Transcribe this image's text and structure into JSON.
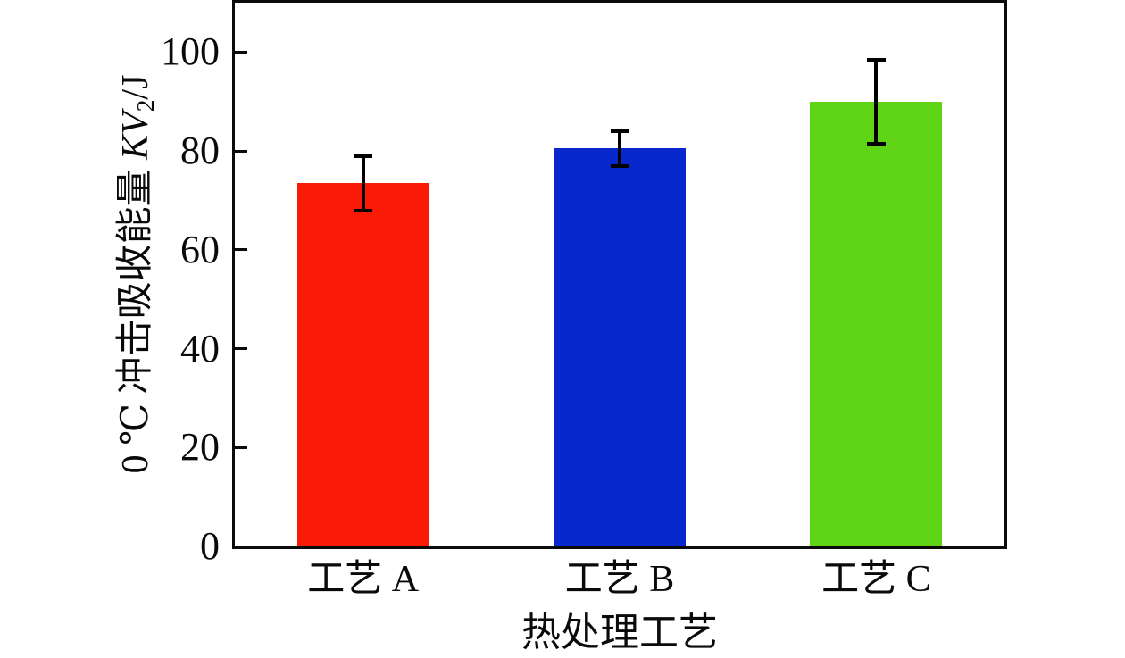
{
  "chart_data": {
    "type": "bar",
    "xlabel": "热处理工艺",
    "ylabel": "0 ℃ 冲击吸收能量 KV2/J",
    "ylabel_parts": {
      "prefix": "0 ℃ 冲击吸收能量 ",
      "symbol": "KV",
      "subscript": "2",
      "suffix": "/J"
    },
    "categories": [
      "工艺 A",
      "工艺 B",
      "工艺 C"
    ],
    "values": [
      73.5,
      80.5,
      90
    ],
    "errors": [
      5.5,
      3.5,
      8.5
    ],
    "bar_colors": [
      "#fa1b07",
      "#0828ce",
      "#5ed414"
    ],
    "error_bar_color": "#000000",
    "axis_color": "#0a0a0a",
    "yticks": [
      0,
      20,
      40,
      60,
      80,
      100
    ],
    "ylim": [
      0,
      110
    ],
    "grid": false,
    "legend_position": "none"
  }
}
